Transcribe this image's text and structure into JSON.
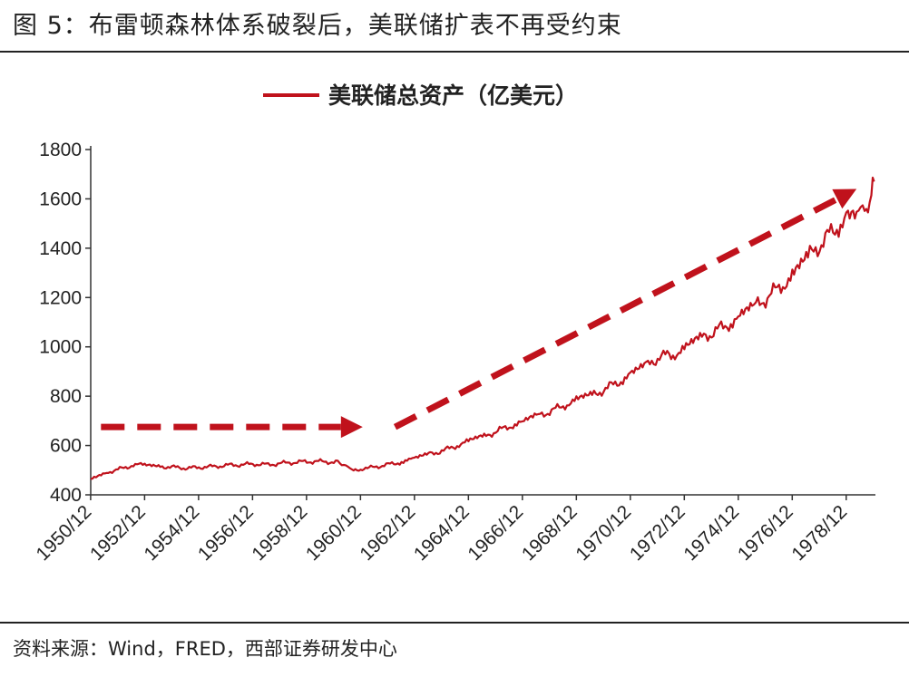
{
  "figure": {
    "title": "图 5：布雷顿森林体系破裂后，美联储扩表不再受约束",
    "source": "资料来源：Wind，FRED，西部证券研发中心"
  },
  "chart_data": {
    "type": "line",
    "title": "",
    "xlabel": "",
    "ylabel": "",
    "ylim": [
      400,
      1800
    ],
    "yticks": [
      400,
      600,
      800,
      1000,
      1200,
      1400,
      1600,
      1800
    ],
    "xlim": [
      1950.92,
      1980.0
    ],
    "xticks": [
      "1950/12",
      "1952/12",
      "1954/12",
      "1956/12",
      "1958/12",
      "1960/12",
      "1962/12",
      "1964/12",
      "1966/12",
      "1968/12",
      "1970/12",
      "1972/12",
      "1974/12",
      "1976/12",
      "1978/12"
    ],
    "legend": {
      "position": "top-center"
    },
    "grid": false,
    "series": [
      {
        "name": "美联储总资产（亿美元）",
        "color": "#c0121c",
        "points": [
          [
            1950.92,
            465
          ],
          [
            1951.5,
            490
          ],
          [
            1952.0,
            505
          ],
          [
            1952.5,
            520
          ],
          [
            1952.92,
            522
          ],
          [
            1953.5,
            515
          ],
          [
            1954.0,
            512
          ],
          [
            1954.5,
            508
          ],
          [
            1955.0,
            512
          ],
          [
            1955.5,
            515
          ],
          [
            1956.0,
            520
          ],
          [
            1956.5,
            522
          ],
          [
            1957.0,
            525
          ],
          [
            1957.5,
            522
          ],
          [
            1958.0,
            528
          ],
          [
            1958.5,
            532
          ],
          [
            1959.0,
            535
          ],
          [
            1959.5,
            535
          ],
          [
            1960.0,
            532
          ],
          [
            1960.3,
            525
          ],
          [
            1960.6,
            500
          ],
          [
            1960.92,
            495
          ],
          [
            1961.3,
            510
          ],
          [
            1961.8,
            520
          ],
          [
            1962.3,
            530
          ],
          [
            1962.92,
            545
          ],
          [
            1963.5,
            565
          ],
          [
            1964.0,
            580
          ],
          [
            1964.5,
            600
          ],
          [
            1964.92,
            615
          ],
          [
            1965.5,
            635
          ],
          [
            1966.0,
            660
          ],
          [
            1966.5,
            680
          ],
          [
            1966.92,
            690
          ],
          [
            1967.5,
            720
          ],
          [
            1968.0,
            740
          ],
          [
            1968.5,
            765
          ],
          [
            1968.92,
            780
          ],
          [
            1969.5,
            800
          ],
          [
            1970.0,
            830
          ],
          [
            1970.5,
            860
          ],
          [
            1970.92,
            880
          ],
          [
            1971.5,
            920
          ],
          [
            1972.0,
            960
          ],
          [
            1972.5,
            970
          ],
          [
            1972.92,
            985
          ],
          [
            1973.5,
            1030
          ],
          [
            1974.0,
            1060
          ],
          [
            1974.5,
            1090
          ],
          [
            1974.92,
            1110
          ],
          [
            1975.5,
            1160
          ],
          [
            1976.0,
            1200
          ],
          [
            1976.5,
            1250
          ],
          [
            1976.92,
            1280
          ],
          [
            1977.5,
            1360
          ],
          [
            1978.0,
            1420
          ],
          [
            1978.5,
            1480
          ],
          [
            1978.92,
            1520
          ],
          [
            1979.3,
            1540
          ],
          [
            1979.6,
            1560
          ],
          [
            1979.85,
            1600
          ],
          [
            1979.95,
            1670
          ]
        ]
      }
    ],
    "annotations": [
      {
        "type": "arrow",
        "style": "dashed",
        "color": "#c0121c",
        "from": [
          1951.3,
          675
        ],
        "to": [
          1961.0,
          675
        ]
      },
      {
        "type": "arrow",
        "style": "dashed",
        "color": "#c0121c",
        "from": [
          1962.2,
          675
        ],
        "to": [
          1979.3,
          1640
        ]
      }
    ]
  }
}
